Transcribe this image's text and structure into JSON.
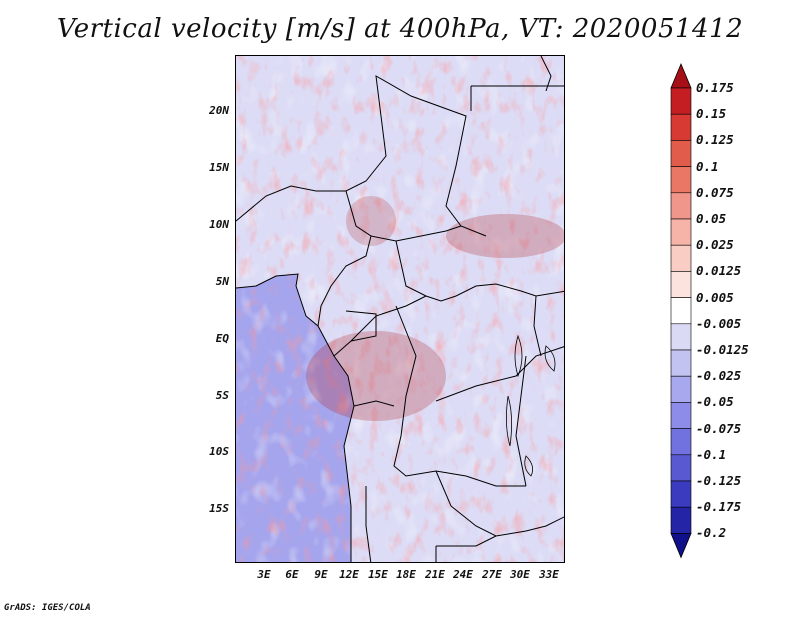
{
  "title": "Vertical velocity [m/s] at 400hPa, VT: 2020051412",
  "credit": "GrADS: IGES/COLA",
  "latitude_labels": [
    "20N",
    "15N",
    "10N",
    "5N",
    "EQ",
    "5S",
    "10S",
    "15S"
  ],
  "longitude_labels": [
    "3E",
    "6E",
    "9E",
    "12E",
    "15E",
    "18E",
    "21E",
    "24E",
    "27E",
    "30E",
    "33E"
  ],
  "colorbar": {
    "levels": [
      "0.175",
      "0.15",
      "0.125",
      "0.1",
      "0.075",
      "0.05",
      "0.025",
      "0.0125",
      "0.005",
      "-0.005",
      "-0.0125",
      "-0.025",
      "-0.05",
      "-0.075",
      "-0.1",
      "-0.125",
      "-0.175",
      "-0.2"
    ],
    "colors": [
      "#a50f15",
      "#c41e22",
      "#d63a32",
      "#e25c4c",
      "#ea7766",
      "#f1968a",
      "#f6b4a9",
      "#f9cdc4",
      "#fce3dd",
      "#ffffff",
      "#dadaf5",
      "#c3c3f2",
      "#a8a8ee",
      "#8d8de9",
      "#7171df",
      "#5959d2",
      "#3b3bbf",
      "#2424a6",
      "#10108a"
    ]
  },
  "map": {
    "ocean_color": "#a5a5ee",
    "land_base_color": "#dcdcf6",
    "lat_range": [
      -19,
      24
    ],
    "lon_range": [
      0,
      34.5
    ]
  }
}
